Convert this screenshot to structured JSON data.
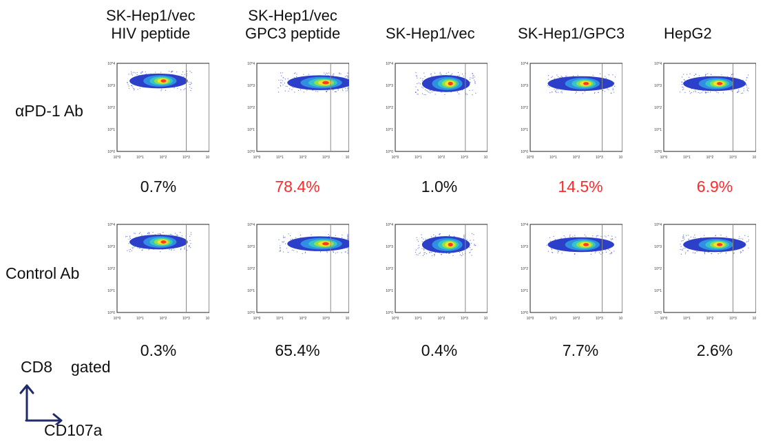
{
  "figure": {
    "column_headers": [
      [
        "SK-Hep1/vec",
        "HIV peptide"
      ],
      [
        "SK-Hep1/vec",
        "GPC3 peptide"
      ],
      [
        "SK-Hep1/vec"
      ],
      [
        "SK-Hep1/GPC3"
      ],
      [
        "HepG2"
      ]
    ],
    "row_labels": [
      "αPD-1 Ab",
      "Control Ab"
    ],
    "axis_note": {
      "y_label": "CD8",
      "gate_label": "gated",
      "x_label": "CD107a"
    },
    "colors": {
      "highlight": "#ff2a2a",
      "default_text": "#111111",
      "axes_arrow": "#1f2a6b"
    }
  },
  "chart_data": {
    "type": "scatter",
    "description_units": "percent CD107a+ of CD8 gated cells",
    "tick_labels": [
      "10^0",
      "10^1",
      "10^2",
      "10^3",
      "10^4"
    ],
    "panels": [
      {
        "row": "αPD-1 Ab",
        "column": "SK-Hep1/vec HIV peptide",
        "percent_label": "0.7%",
        "percent": 0.7,
        "highlight": false
      },
      {
        "row": "αPD-1 Ab",
        "column": "SK-Hep1/vec GPC3 peptide",
        "percent_label": "78.4%",
        "percent": 78.4,
        "highlight": true
      },
      {
        "row": "αPD-1 Ab",
        "column": "SK-Hep1/vec",
        "percent_label": "1.0%",
        "percent": 1.0,
        "highlight": false
      },
      {
        "row": "αPD-1 Ab",
        "column": "SK-Hep1/GPC3",
        "percent_label": "14.5%",
        "percent": 14.5,
        "highlight": true
      },
      {
        "row": "αPD-1 Ab",
        "column": "HepG2",
        "percent_label": "6.9%",
        "percent": 6.9,
        "highlight": true
      },
      {
        "row": "Control Ab",
        "column": "SK-Hep1/vec HIV peptide",
        "percent_label": "0.3%",
        "percent": 0.3,
        "highlight": false
      },
      {
        "row": "Control Ab",
        "column": "SK-Hep1/vec GPC3 peptide",
        "percent_label": "65.4%",
        "percent": 65.4,
        "highlight": false
      },
      {
        "row": "Control Ab",
        "column": "SK-Hep1/vec",
        "percent_label": "0.4%",
        "percent": 0.4,
        "highlight": false
      },
      {
        "row": "Control Ab",
        "column": "SK-Hep1/GPC3",
        "percent_label": "7.7%",
        "percent": 7.7,
        "highlight": false
      },
      {
        "row": "Control Ab",
        "column": "HepG2",
        "percent_label": "2.6%",
        "percent": 2.6,
        "highlight": false
      }
    ]
  }
}
